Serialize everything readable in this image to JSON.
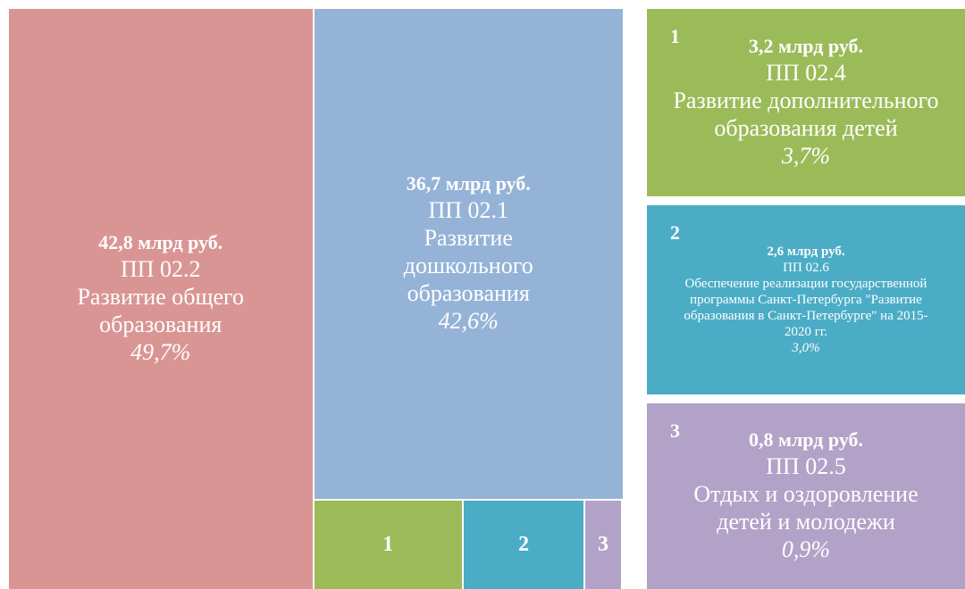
{
  "chart_data": {
    "type": "treemap",
    "items": [
      {
        "value": 42.8,
        "value_label": "42,8 млрд руб.",
        "code": "ПП 02.2",
        "name": "Развитие общего образования",
        "share": 49.7,
        "share_label": "49,7%",
        "color": "#d99594"
      },
      {
        "value": 36.7,
        "value_label": "36,7 млрд руб.",
        "code": "ПП 02.1",
        "name": "Развитие дошкольного образования",
        "share": 42.6,
        "share_label": "42,6%",
        "color": "#95b3d7"
      },
      {
        "value": 3.2,
        "value_label": "3,2 млрд руб.",
        "code": "ПП 02.4",
        "name": "Развитие дополнительного образования детей",
        "share": 3.7,
        "share_label": "3,7%",
        "color": "#9bbb59",
        "marker": "1"
      },
      {
        "value": 2.6,
        "value_label": "2,6 млрд руб.",
        "code": "ПП 02.6",
        "name": "Обеспечение реализации государственной программы Санкт-Петербурга \"Развитие образования в Санкт-Петербурге\" на 2015-2020  гг.",
        "share": 3.0,
        "share_label": "3,0%",
        "color": "#4bacc6",
        "marker": "2"
      },
      {
        "value": 0.8,
        "value_label": "0,8 млрд руб.",
        "code": "ПП 02.5",
        "name": "Отдых и оздоровление детей и молодежи",
        "share": 0.9,
        "share_label": "0,9%",
        "color": "#b2a2c7",
        "marker": "3"
      }
    ]
  }
}
